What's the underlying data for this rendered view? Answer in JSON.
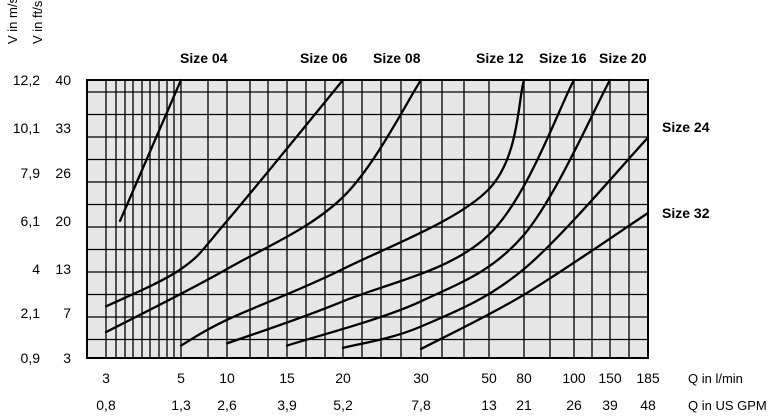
{
  "chart_data": {
    "type": "line",
    "y_axis_title_ms": "V in m/s",
    "y_axis_title_fts": "V in ft/s",
    "y_ticks_ms": [
      "12,2",
      "10,1",
      "7,9",
      "6,1",
      "4",
      "2,1",
      "0,9"
    ],
    "y_ticks_fts": [
      "40",
      "33",
      "26",
      "20",
      "13",
      "7",
      "3"
    ],
    "x_ticks_lmin": [
      "3",
      "5",
      "10",
      "15",
      "20",
      "30",
      "50",
      "80",
      "100",
      "150",
      "185"
    ],
    "x_ticks_gpm": [
      "0,8",
      "1,3",
      "2,6",
      "3,9",
      "5,2",
      "7,8",
      "13",
      "21",
      "26",
      "39",
      "48"
    ],
    "x_axis_title_lmin": "Q in l/min",
    "x_axis_title_gpm": "Q in US GPM",
    "x_scale": "logarithmic (scale positions follow the printed tick sequence)",
    "y_range_fts": [
      3,
      40
    ],
    "grid": true,
    "series": [
      {
        "name": "Size 04",
        "points": [
          [
            3.3,
            20
          ],
          [
            5,
            40
          ]
        ]
      },
      {
        "name": "Size 06",
        "points": [
          [
            3,
            7.9
          ],
          [
            5,
            13
          ],
          [
            10,
            20
          ],
          [
            20,
            40
          ]
        ]
      },
      {
        "name": "Size 08",
        "points": [
          [
            3,
            5.3
          ],
          [
            10,
            13
          ],
          [
            20,
            23
          ],
          [
            30,
            40
          ]
        ]
      },
      {
        "name": "Size 12",
        "points": [
          [
            5,
            4.1
          ],
          [
            10,
            6.4
          ],
          [
            20,
            13
          ],
          [
            50,
            24
          ],
          [
            80,
            40
          ]
        ]
      },
      {
        "name": "Size 16",
        "points": [
          [
            10,
            4.3
          ],
          [
            20,
            8.6
          ],
          [
            50,
            18
          ],
          [
            100,
            40
          ]
        ]
      },
      {
        "name": "Size 20",
        "points": [
          [
            15,
            4.1
          ],
          [
            30,
            8.6
          ],
          [
            80,
            18
          ],
          [
            150,
            40
          ]
        ]
      },
      {
        "name": "Size 24",
        "points": [
          [
            20,
            3.9
          ],
          [
            30,
            5.8
          ],
          [
            80,
            13
          ],
          [
            185,
            31.5
          ]
        ]
      },
      {
        "name": "Size 32",
        "points": [
          [
            30,
            3.8
          ],
          [
            80,
            9.5
          ],
          [
            185,
            21
          ]
        ]
      }
    ]
  }
}
